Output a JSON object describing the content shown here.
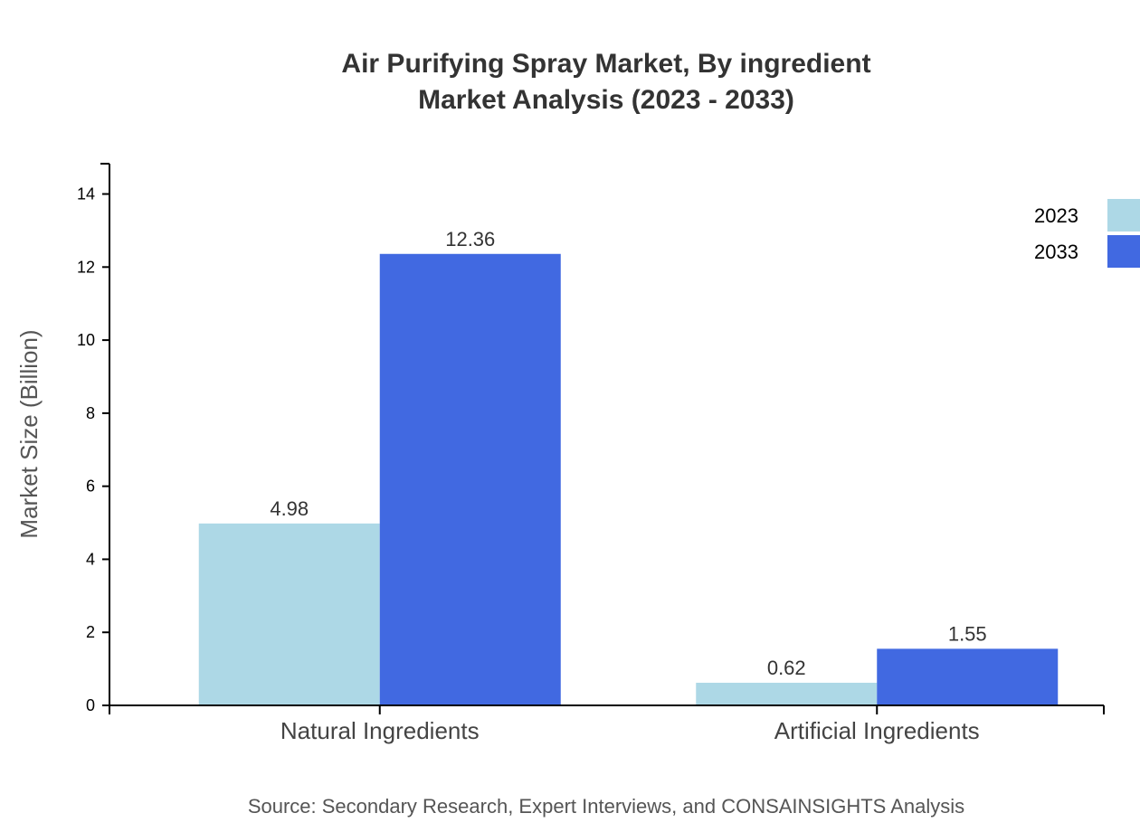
{
  "chart_data": {
    "type": "bar",
    "title": "Air Purifying Spray Market, By ingredient",
    "subtitle": "Market Analysis (2023 - 2033)",
    "xlabel": "",
    "ylabel": "Market Size (Billion)",
    "categories": [
      "Natural Ingredients",
      "Artificial Ingredients"
    ],
    "series": [
      {
        "name": "2023",
        "values": [
          4.98,
          0.62
        ],
        "color": "#add8e6"
      },
      {
        "name": "2033",
        "values": [
          12.36,
          1.55
        ],
        "color": "#4169e1"
      }
    ],
    "ylim": [
      0,
      14.83
    ],
    "yticks": [
      0,
      2,
      4,
      6,
      8,
      10,
      12,
      14
    ],
    "grid": false,
    "legend_position": "top-right",
    "source": "Source: Secondary Research, Expert Interviews, and CONSAINSIGHTS Analysis"
  }
}
